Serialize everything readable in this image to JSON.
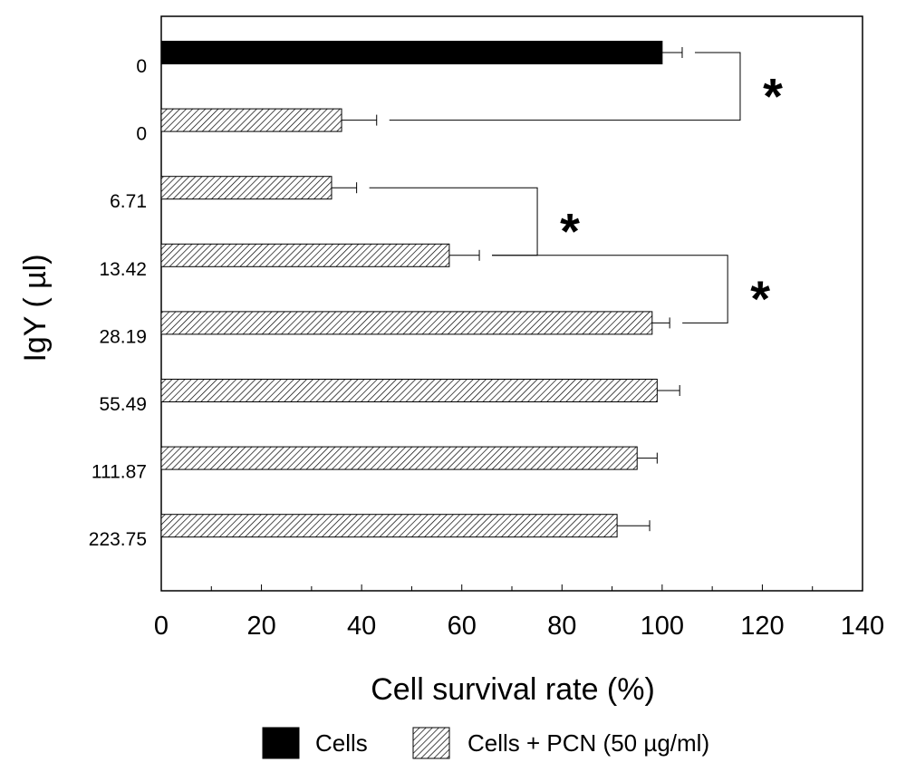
{
  "chart_data": {
    "type": "bar",
    "orientation": "horizontal",
    "xlabel": "Cell survival rate (%)",
    "ylabel": "IgY ( µl)",
    "xlim": [
      0,
      140
    ],
    "x_ticks": [
      0,
      20,
      40,
      60,
      80,
      100,
      120,
      140
    ],
    "grid": false,
    "legend_position": "bottom",
    "series": [
      {
        "name": "Cells",
        "color": "#000000",
        "pattern": "solid"
      },
      {
        "name": "Cells + PCN (50 µg/ml)",
        "color": "#000000",
        "pattern": "hatched"
      }
    ],
    "categories": [
      "0",
      "0",
      "6.71",
      "13.42",
      "28.19",
      "55.49",
      "111.87",
      "223.75"
    ],
    "bars": [
      {
        "category": "0",
        "series": 0,
        "value": 100,
        "error": 4
      },
      {
        "category": "0",
        "series": 1,
        "value": 36,
        "error": 7
      },
      {
        "category": "6.71",
        "series": 1,
        "value": 34,
        "error": 5
      },
      {
        "category": "13.42",
        "series": 1,
        "value": 57.5,
        "error": 6
      },
      {
        "category": "28.19",
        "series": 1,
        "value": 98,
        "error": 3.5
      },
      {
        "category": "55.49",
        "series": 1,
        "value": 99,
        "error": 4.5
      },
      {
        "category": "111.87",
        "series": 1,
        "value": 95,
        "error": 4
      },
      {
        "category": "223.75",
        "series": 1,
        "value": 91,
        "error": 6.5
      }
    ],
    "significance": [
      {
        "from": 0,
        "to": 1,
        "label": "*"
      },
      {
        "from": 2,
        "to": 3,
        "label": "*"
      },
      {
        "from": 3,
        "to": 4,
        "label": "*"
      }
    ]
  }
}
